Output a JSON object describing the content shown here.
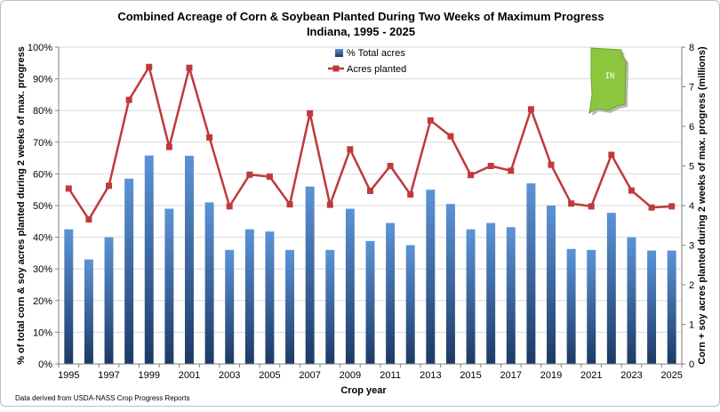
{
  "chart_data": {
    "type": "bar",
    "title": "Combined Acreage of Corn & Soybean Planted During Two Weeks of Maximum Progress",
    "subtitle": "Indiana, 1995 - 2025",
    "xlabel": "Crop year",
    "ylabel_left": "% of total corn & soy acres planted during 2 weeks of max. progress",
    "ylabel_right": "Corn + soy acres planted during 2 weeks of max. progress (millions)",
    "x_tick_labels": [
      "1995",
      "1997",
      "1999",
      "2001",
      "2003",
      "2005",
      "2007",
      "2009",
      "2011",
      "2013",
      "2015",
      "2017",
      "2019",
      "2021",
      "2023",
      "2025"
    ],
    "y_left_ticks": [
      "0%",
      "10%",
      "20%",
      "30%",
      "40%",
      "50%",
      "60%",
      "70%",
      "80%",
      "90%",
      "100%"
    ],
    "y_right_ticks": [
      "0",
      "1",
      "2",
      "3",
      "4",
      "5",
      "6",
      "7",
      "8"
    ],
    "ylim_left": [
      0,
      100
    ],
    "ylim_right": [
      0,
      8
    ],
    "grid": true,
    "legend_position": "top-center",
    "note": "Data derived from USDA-NASS Crop Progress Reports",
    "state_badge": "IN",
    "years": [
      1995,
      1996,
      1997,
      1998,
      1999,
      2000,
      2001,
      2002,
      2003,
      2004,
      2005,
      2006,
      2007,
      2008,
      2009,
      2010,
      2011,
      2012,
      2013,
      2014,
      2015,
      2016,
      2017,
      2018,
      2019,
      2020,
      2021,
      2022,
      2023,
      2024,
      2025
    ],
    "series": [
      {
        "name": "% Total acres",
        "type": "bar",
        "axis": "left",
        "color": "#4a7ec4",
        "values": [
          42.5,
          33,
          40,
          58.5,
          65.8,
          49,
          65.7,
          51,
          36,
          42.5,
          41.8,
          36,
          56,
          36,
          49,
          38.8,
          44.5,
          37.5,
          55,
          50.5,
          42.5,
          44.5,
          43.2,
          57,
          50,
          36.3,
          36,
          47.7,
          40,
          35.8,
          35.8
        ]
      },
      {
        "name": "Acres planted",
        "type": "line",
        "axis": "right",
        "color": "#c0393b",
        "values": [
          4.43,
          3.65,
          4.5,
          6.67,
          7.5,
          5.48,
          7.48,
          5.72,
          3.98,
          4.78,
          4.73,
          4.03,
          6.33,
          4.02,
          5.42,
          4.37,
          5.0,
          4.28,
          6.15,
          5.75,
          4.77,
          5.0,
          4.88,
          6.43,
          5.03,
          4.05,
          3.98,
          5.28,
          4.38,
          3.95,
          3.98
        ]
      }
    ]
  }
}
